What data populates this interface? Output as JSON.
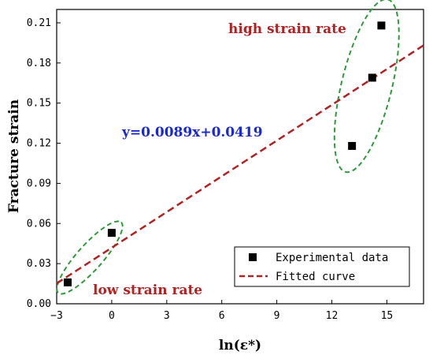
{
  "chart_data": {
    "type": "scatter",
    "xlabel": "ln(ε*)",
    "ylabel": "Fracture strain",
    "xlim": [
      -3,
      17
    ],
    "ylim": [
      0,
      0.22
    ],
    "x_ticks": [
      "−3",
      "0",
      "3",
      "6",
      "9",
      "12",
      "15"
    ],
    "x_tick_values": [
      -3,
      0,
      3,
      6,
      9,
      12,
      15
    ],
    "y_ticks": [
      "0.00",
      "0.03",
      "0.06",
      "0.09",
      "0.12",
      "0.15",
      "0.18",
      "0.21"
    ],
    "y_tick_values": [
      0,
      0.03,
      0.06,
      0.09,
      0.12,
      0.15,
      0.18,
      0.21
    ],
    "series": [
      {
        "name": "Experimental data",
        "kind": "scatter",
        "x": [
          -2.4,
          0.0,
          13.1,
          14.2,
          14.7
        ],
        "y": [
          0.016,
          0.053,
          0.118,
          0.169,
          0.208
        ],
        "color": "#000000"
      },
      {
        "name": "Fitted curve",
        "kind": "line",
        "slope": 0.0089,
        "intercept": 0.0419,
        "color": "#b22222"
      }
    ],
    "annotations": {
      "equation": "y=0.0089x+0.0419",
      "high_label": "high strain rate",
      "low_label": "low strain rate"
    },
    "legend_position": "bottom-right",
    "grid": false
  }
}
